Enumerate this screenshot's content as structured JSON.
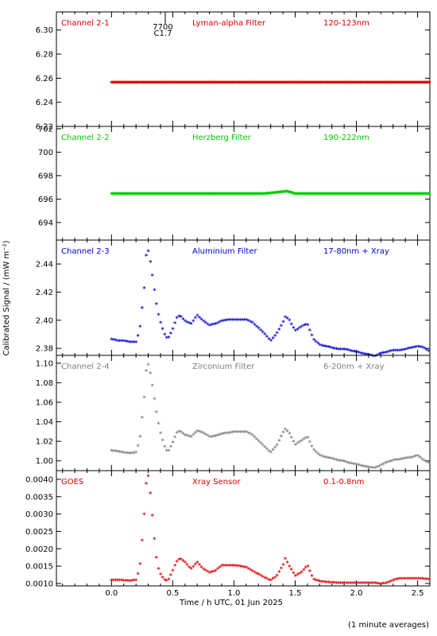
{
  "xlabel": "Time / h UTC, 01 Jun 2025",
  "ylabel": "Calibrated Signal / (mW m⁻²)",
  "footnote": "(1 minute averages)",
  "event_marker": {
    "line1": "7700",
    "line2": "C1.7"
  },
  "colors": {
    "red": "#dd0000",
    "green": "#00cc00",
    "blue": "#0000cc",
    "gray": "#808080"
  },
  "chart_data": [
    {
      "type": "scatter",
      "channel": "Channel 2-1",
      "filter": "Lyman-alpha Filter",
      "band": "120-123nm",
      "color": "#dd0000",
      "xlim": [
        -0.45,
        2.6
      ],
      "xticks": [
        0.0,
        0.5,
        1.0,
        1.5,
        2.0,
        2.5
      ],
      "xtick_labels": [
        "0.0",
        "0.5",
        "1.0",
        "1.5",
        "2.0",
        "2.5"
      ],
      "ylim": [
        6.22,
        6.315
      ],
      "yticks": [
        6.22,
        6.24,
        6.26,
        6.28,
        6.3
      ],
      "ytick_labels": [
        "6.22",
        "6.24",
        "6.26",
        "6.28",
        "6.30"
      ],
      "x": [
        0.0,
        0.25,
        0.5,
        0.75,
        1.0,
        1.25,
        1.5,
        1.75,
        2.0,
        2.25,
        2.5,
        2.6
      ],
      "y": [
        6.256,
        6.256,
        6.256,
        6.256,
        6.256,
        6.256,
        6.256,
        6.256,
        6.256,
        6.256,
        6.256,
        6.256
      ]
    },
    {
      "type": "scatter",
      "channel": "Channel 2-2",
      "filter": "Herzberg Filter",
      "band": "190-222nm",
      "color": "#00cc00",
      "xlim": [
        -0.45,
        2.6
      ],
      "xticks": [
        0.0,
        0.5,
        1.0,
        1.5,
        2.0,
        2.5
      ],
      "xtick_labels": [
        "0.0",
        "0.5",
        "1.0",
        "1.5",
        "2.0",
        "2.5"
      ],
      "ylim": [
        692.5,
        702.2
      ],
      "yticks": [
        694,
        696,
        698,
        700,
        702
      ],
      "ytick_labels": [
        "694",
        "696",
        "698",
        "700",
        "702"
      ],
      "x": [
        0.0,
        0.25,
        0.5,
        0.75,
        1.0,
        1.25,
        1.43,
        1.5,
        1.75,
        2.0,
        2.25,
        2.5,
        2.6
      ],
      "y": [
        696.4,
        696.4,
        696.4,
        696.4,
        696.4,
        696.4,
        696.6,
        696.4,
        696.4,
        696.4,
        696.4,
        696.4,
        696.4
      ]
    },
    {
      "type": "scatter",
      "channel": "Channel 2-3",
      "filter": "Aluminium Filter",
      "band": "17-80nm + Xray",
      "color": "#0000cc",
      "xlim": [
        -0.45,
        2.6
      ],
      "xticks": [
        0.0,
        0.5,
        1.0,
        1.5,
        2.0,
        2.5
      ],
      "xtick_labels": [
        "0.0",
        "0.5",
        "1.0",
        "1.5",
        "2.0",
        "2.5"
      ],
      "ylim": [
        2.375,
        2.457
      ],
      "yticks": [
        2.38,
        2.4,
        2.42,
        2.44
      ],
      "ytick_labels": [
        "2.38",
        "2.40",
        "2.42",
        "2.44"
      ],
      "x": [
        0.0,
        0.05,
        0.1,
        0.15,
        0.2,
        0.23,
        0.25,
        0.27,
        0.28,
        0.3,
        0.32,
        0.34,
        0.36,
        0.38,
        0.4,
        0.43,
        0.46,
        0.5,
        0.53,
        0.56,
        0.6,
        0.65,
        0.7,
        0.75,
        0.8,
        0.85,
        0.9,
        0.95,
        1.0,
        1.05,
        1.1,
        1.15,
        1.2,
        1.25,
        1.3,
        1.35,
        1.4,
        1.42,
        1.45,
        1.5,
        1.55,
        1.6,
        1.65,
        1.7,
        1.75,
        1.8,
        1.85,
        1.9,
        1.95,
        2.0,
        2.05,
        2.1,
        2.15,
        2.2,
        2.25,
        2.3,
        2.35,
        2.4,
        2.45,
        2.5,
        2.55,
        2.6
      ],
      "y": [
        2.386,
        2.385,
        2.385,
        2.384,
        2.384,
        2.392,
        2.408,
        2.425,
        2.445,
        2.449,
        2.44,
        2.428,
        2.415,
        2.405,
        2.398,
        2.39,
        2.386,
        2.393,
        2.401,
        2.403,
        2.399,
        2.397,
        2.403,
        2.399,
        2.396,
        2.397,
        2.399,
        2.4,
        2.4,
        2.4,
        2.4,
        2.398,
        2.394,
        2.39,
        2.385,
        2.39,
        2.398,
        2.402,
        2.4,
        2.392,
        2.395,
        2.397,
        2.386,
        2.382,
        2.381,
        2.38,
        2.379,
        2.379,
        2.378,
        2.377,
        2.376,
        2.375,
        2.374,
        2.376,
        2.377,
        2.378,
        2.378,
        2.379,
        2.38,
        2.381,
        2.38,
        2.377
      ]
    },
    {
      "type": "scatter",
      "channel": "Channel 2-4",
      "filter": "Zirconium Filter",
      "band": "6-20nm + Xray",
      "color": "#808080",
      "xlim": [
        -0.45,
        2.6
      ],
      "xticks": [
        0.0,
        0.5,
        1.0,
        1.5,
        2.0,
        2.5
      ],
      "xtick_labels": [
        "0.0",
        "0.5",
        "1.0",
        "1.5",
        "2.0",
        "2.5"
      ],
      "ylim": [
        0.99,
        1.108
      ],
      "yticks": [
        1.0,
        1.02,
        1.04,
        1.06,
        1.08,
        1.1
      ],
      "ytick_labels": [
        "1.00",
        "1.02",
        "1.04",
        "1.06",
        "1.08",
        "1.10"
      ],
      "x": [
        0.0,
        0.05,
        0.1,
        0.15,
        0.2,
        0.23,
        0.25,
        0.27,
        0.28,
        0.3,
        0.32,
        0.34,
        0.36,
        0.38,
        0.4,
        0.43,
        0.46,
        0.5,
        0.53,
        0.56,
        0.6,
        0.65,
        0.7,
        0.75,
        0.8,
        0.85,
        0.9,
        0.95,
        1.0,
        1.05,
        1.1,
        1.15,
        1.2,
        1.25,
        1.3,
        1.35,
        1.4,
        1.42,
        1.45,
        1.5,
        1.55,
        1.6,
        1.65,
        1.7,
        1.75,
        1.8,
        1.85,
        1.9,
        1.95,
        2.0,
        2.05,
        2.1,
        2.15,
        2.2,
        2.25,
        2.3,
        2.35,
        2.4,
        2.45,
        2.5,
        2.55,
        2.6
      ],
      "y": [
        1.01,
        1.009,
        1.008,
        1.007,
        1.008,
        1.02,
        1.043,
        1.068,
        1.09,
        1.098,
        1.088,
        1.072,
        1.055,
        1.04,
        1.028,
        1.015,
        1.008,
        1.018,
        1.028,
        1.03,
        1.026,
        1.024,
        1.03,
        1.028,
        1.024,
        1.025,
        1.027,
        1.028,
        1.029,
        1.029,
        1.029,
        1.026,
        1.02,
        1.014,
        1.008,
        1.015,
        1.028,
        1.032,
        1.028,
        1.016,
        1.02,
        1.024,
        1.011,
        1.005,
        1.003,
        1.002,
        1.0,
        0.999,
        0.997,
        0.996,
        0.994,
        0.993,
        0.992,
        0.995,
        0.998,
        1.0,
        1.001,
        1.002,
        1.003,
        1.005,
        1.0,
        0.997
      ]
    },
    {
      "type": "scatter",
      "channel": "GOES",
      "filter": "Xray Sensor",
      "band": "0.1-0.8nm",
      "color": "#dd0000",
      "xlim": [
        -0.45,
        2.6
      ],
      "xticks": [
        0.0,
        0.5,
        1.0,
        1.5,
        2.0,
        2.5
      ],
      "xtick_labels": [
        "0.0",
        "0.5",
        "1.0",
        "1.5",
        "2.0",
        "2.5"
      ],
      "ylim": [
        0.00093,
        0.00425
      ],
      "yticks": [
        0.001,
        0.0015,
        0.002,
        0.0025,
        0.003,
        0.0035,
        0.004
      ],
      "ytick_labels": [
        "0.0010",
        "0.0015",
        "0.0020",
        "0.0025",
        "0.0030",
        "0.0035",
        "0.0040"
      ],
      "x": [
        0.0,
        0.05,
        0.1,
        0.15,
        0.2,
        0.23,
        0.25,
        0.27,
        0.28,
        0.3,
        0.32,
        0.34,
        0.36,
        0.38,
        0.4,
        0.43,
        0.46,
        0.5,
        0.53,
        0.56,
        0.6,
        0.65,
        0.7,
        0.75,
        0.8,
        0.85,
        0.9,
        0.95,
        1.0,
        1.05,
        1.1,
        1.15,
        1.2,
        1.25,
        1.3,
        1.35,
        1.4,
        1.42,
        1.45,
        1.5,
        1.55,
        1.6,
        1.65,
        1.7,
        1.75,
        1.8,
        1.85,
        1.9,
        1.95,
        2.0,
        2.05,
        2.1,
        2.15,
        2.2,
        2.25,
        2.3,
        2.35,
        2.4,
        2.45,
        2.5,
        2.55,
        2.6
      ],
      "y": [
        0.00108,
        0.00108,
        0.00107,
        0.00106,
        0.00108,
        0.0014,
        0.0022,
        0.0031,
        0.0038,
        0.0041,
        0.0035,
        0.0027,
        0.0019,
        0.00145,
        0.00125,
        0.0011,
        0.00105,
        0.00135,
        0.0016,
        0.0017,
        0.0016,
        0.0014,
        0.0016,
        0.0014,
        0.0013,
        0.00135,
        0.0015,
        0.0015,
        0.0015,
        0.00148,
        0.00145,
        0.00135,
        0.00125,
        0.00115,
        0.00107,
        0.0012,
        0.0015,
        0.0017,
        0.0015,
        0.0012,
        0.0013,
        0.0015,
        0.0011,
        0.00105,
        0.00102,
        0.00101,
        0.001,
        0.001,
        0.001,
        0.001,
        0.001,
        0.001,
        0.001,
        0.00097,
        0.001,
        0.00108,
        0.00112,
        0.00112,
        0.00112,
        0.00112,
        0.00112,
        0.0011
      ]
    }
  ]
}
